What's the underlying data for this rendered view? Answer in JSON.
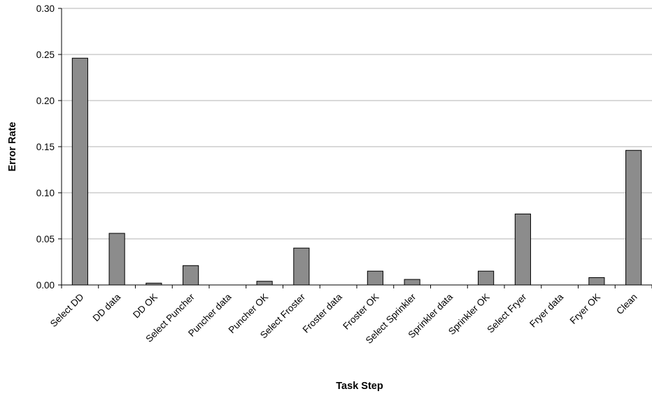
{
  "chart_data": {
    "type": "bar",
    "title": "",
    "xlabel": "Task Step",
    "ylabel": "Error Rate",
    "ylim": [
      0,
      0.3
    ],
    "yticks": [
      "0.00",
      "0.05",
      "0.10",
      "0.15",
      "0.20",
      "0.25",
      "0.30"
    ],
    "grid": true,
    "legend": "none",
    "bar_color": "#8c8c8c",
    "categories": [
      "Select DD",
      "DD data",
      "DD OK",
      "Select Puncher",
      "Puncher data",
      "Puncher OK",
      "Select Froster",
      "Froster data",
      "Froster OK",
      "Select Sprinkler",
      "Sprinkler data",
      "Sprinkler OK",
      "Select Fryer",
      "Fryer data",
      "Fryer OK",
      "Clean"
    ],
    "values": [
      0.246,
      0.056,
      0.002,
      0.021,
      0,
      0.004,
      0.04,
      0,
      0.015,
      0.006,
      0,
      0.015,
      0.077,
      0,
      0.008,
      0.146
    ]
  }
}
